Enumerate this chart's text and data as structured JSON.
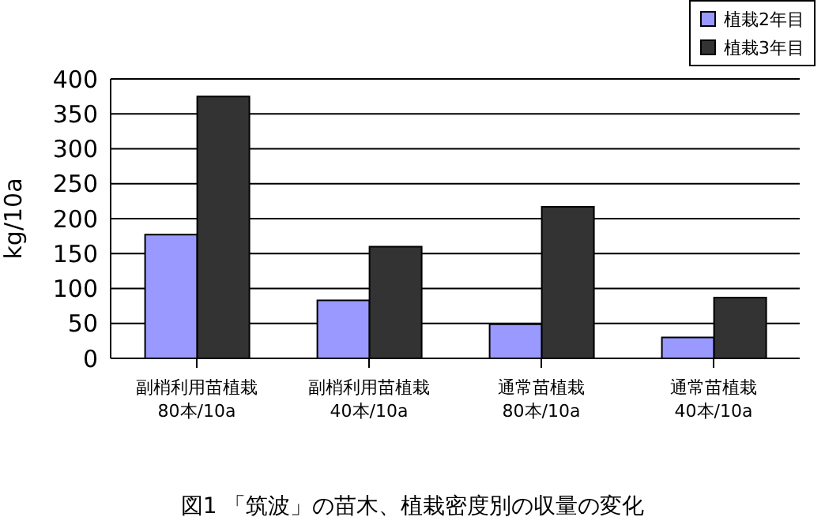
{
  "chart_data": {
    "type": "bar",
    "title": "図1 「筑波」の苗木、植栽密度別の収量の変化",
    "ylabel": "kg/10a",
    "categories": [
      "副梢利用苗植栽\n80本/10a",
      "副梢利用苗植栽\n40本/10a",
      "通常苗植栽\n80本/10a",
      "通常苗植栽\n40本/10a"
    ],
    "series": [
      {
        "name": "植栽2年目",
        "color": "#9999ff",
        "values": [
          177,
          83,
          49,
          30
        ]
      },
      {
        "name": "植栽3年目",
        "color": "#333333",
        "values": [
          375,
          160,
          217,
          87
        ]
      }
    ],
    "ylim": [
      0,
      400
    ],
    "yticks": [
      0,
      50,
      100,
      150,
      200,
      250,
      300,
      350,
      400
    ],
    "grid": "y",
    "legend": "top right"
  }
}
